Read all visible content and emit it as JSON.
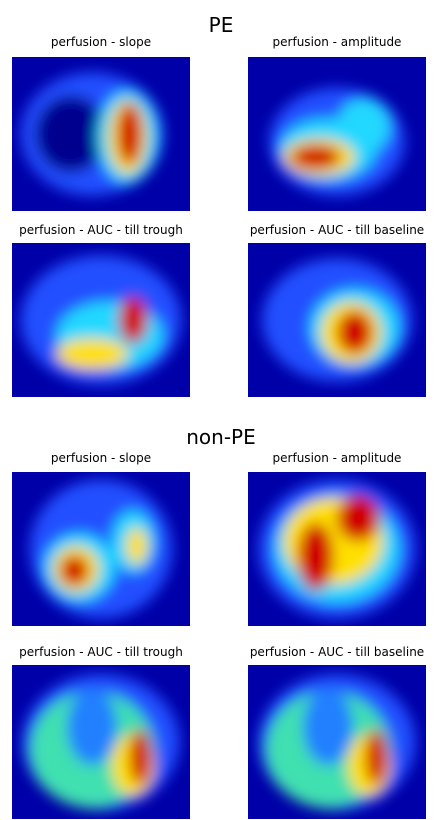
{
  "sections": [
    {
      "title": "PE",
      "panels": [
        {
          "label": "perfusion - slope"
        },
        {
          "label": "perfusion - amplitude"
        },
        {
          "label": "perfusion - AUC - till trough"
        },
        {
          "label": "perfusion - AUC - till baseline"
        }
      ]
    },
    {
      "title": "non-PE",
      "panels": [
        {
          "label": "perfusion - slope"
        },
        {
          "label": "perfusion - amplitude"
        },
        {
          "label": "perfusion - AUC - till trough"
        },
        {
          "label": "perfusion - AUC - till baseline"
        }
      ]
    }
  ]
}
